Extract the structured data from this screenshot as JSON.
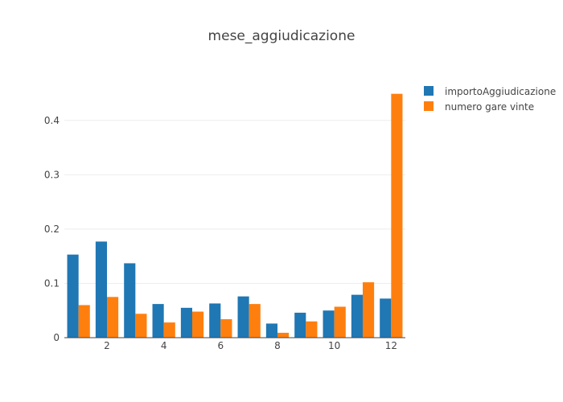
{
  "chart_data": {
    "type": "bar",
    "title": "mese_aggiudicazione",
    "categories": [
      1,
      2,
      3,
      4,
      5,
      6,
      7,
      8,
      9,
      10,
      11,
      12
    ],
    "series": [
      {
        "name": "importoAggiudicazione",
        "color": "#1f77b4",
        "values": [
          0.153,
          0.177,
          0.137,
          0.062,
          0.055,
          0.063,
          0.076,
          0.026,
          0.046,
          0.05,
          0.079,
          0.072
        ]
      },
      {
        "name": "numero gare vinte",
        "color": "#ff7f0e",
        "values": [
          0.06,
          0.075,
          0.044,
          0.028,
          0.048,
          0.034,
          0.062,
          0.009,
          0.03,
          0.057,
          0.102,
          0.449
        ]
      }
    ],
    "x_ticks": [
      "2",
      "4",
      "6",
      "8",
      "10",
      "12"
    ],
    "y_ticks": [
      "0",
      "0.1",
      "0.2",
      "0.3",
      "0.4"
    ],
    "ylim": [
      0,
      0.4737
    ],
    "xlabel": "",
    "ylabel": "",
    "grid": true,
    "legend_position": "top-right"
  }
}
